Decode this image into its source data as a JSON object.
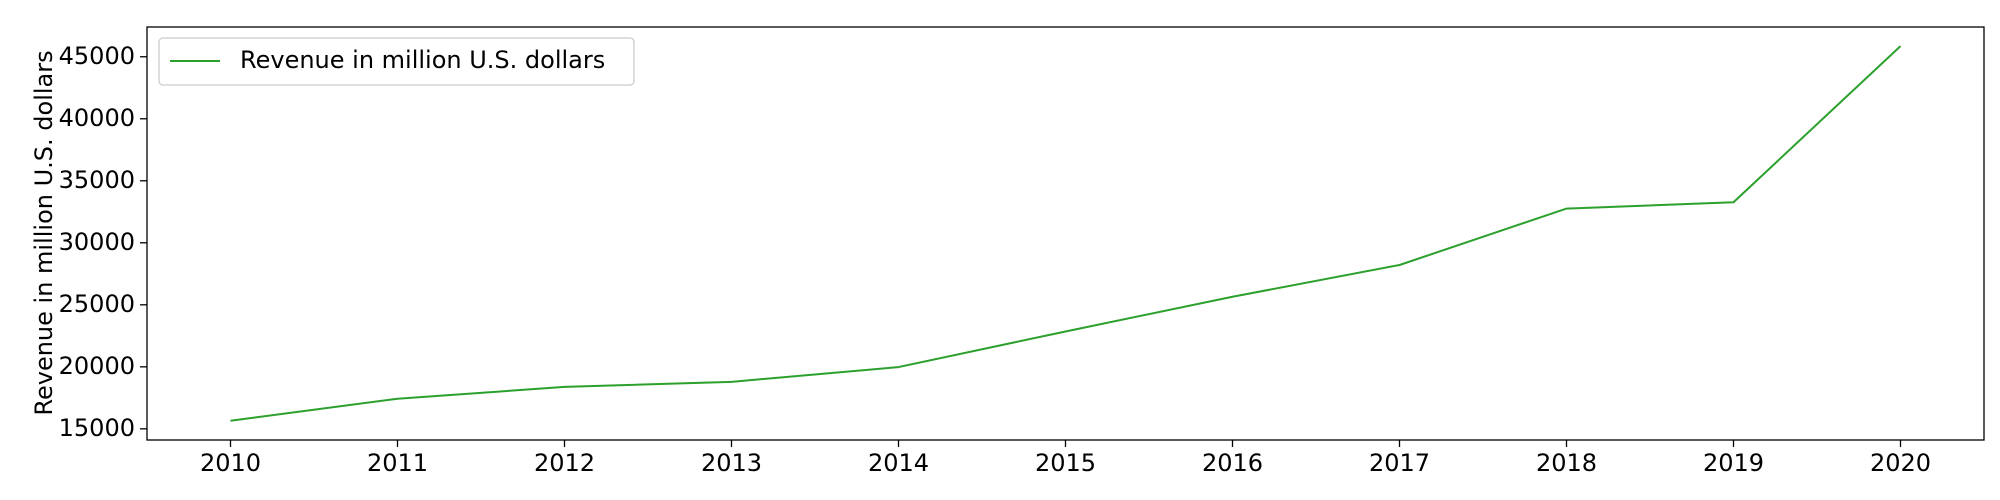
{
  "chart_data": {
    "type": "line",
    "title": "",
    "xlabel": "",
    "ylabel": "Revenue in million U.S. dollars",
    "x": [
      2010,
      2011,
      2012,
      2013,
      2014,
      2015,
      2016,
      2017,
      2018,
      2019,
      2020
    ],
    "series": [
      {
        "name": "Revenue in million U.S. dollars",
        "color": "#2ca02c",
        "values": [
          15650,
          17430,
          18380,
          18790,
          19980,
          22850,
          25650,
          28210,
          32760,
          33270,
          45860
        ]
      }
    ],
    "xlim": [
      2009.5,
      2020.5
    ],
    "ylim": [
      14100,
      47400
    ],
    "yticks": [
      15000,
      20000,
      25000,
      30000,
      35000,
      40000,
      45000
    ],
    "xticks": [
      2010,
      2011,
      2012,
      2013,
      2014,
      2015,
      2016,
      2017,
      2018,
      2019,
      2020
    ],
    "grid": false,
    "legend_position": "top-left"
  }
}
